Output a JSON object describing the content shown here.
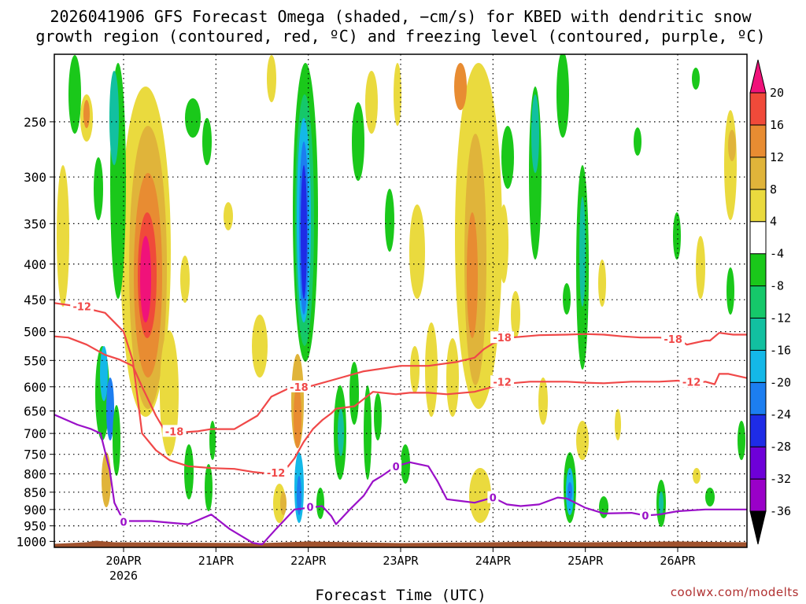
{
  "chart_data": {
    "type": "heatmap",
    "title_lines": [
      "2026041906 GFS Forecast Omega (shaded, −cm/s) for KBED with dendritic snow",
      "growth region (contoured, red, ºC) and freezing level (contoured, purple, ºC)"
    ],
    "xlabel": "Forecast Time (UTC)",
    "credit": "coolwx.com/modelts",
    "x_range_days": [
      19.25,
      26.75
    ],
    "y_range_hpa": [
      200,
      1020
    ],
    "y_ticks": [
      250,
      300,
      350,
      400,
      450,
      500,
      550,
      600,
      650,
      700,
      750,
      800,
      850,
      900,
      950,
      1000
    ],
    "x_ticks": [
      {
        "day": 20,
        "label": "20APR"
      },
      {
        "day": 21,
        "label": "21APR"
      },
      {
        "day": 22,
        "label": "22APR"
      },
      {
        "day": 23,
        "label": "23APR"
      },
      {
        "day": 24,
        "label": "24APR"
      },
      {
        "day": 25,
        "label": "25APR"
      },
      {
        "day": 26,
        "label": "26APR"
      }
    ],
    "x_sub_label": "2026",
    "colorbar": {
      "levels": [
        -36,
        -32,
        -28,
        -24,
        -20,
        -16,
        -12,
        -8,
        -4,
        4,
        8,
        12,
        16,
        20
      ],
      "colors": [
        "#999999",
        "#9a00c8",
        "#6e00d8",
        "#1e2ce6",
        "#1c7ef0",
        "#14b8e8",
        "#12c0a0",
        "#15c86a",
        "#1ac81a",
        "#ffffff",
        "#eada3e",
        "#e0b43a",
        "#e88c32",
        "#f04a3a",
        "#f0127a"
      ],
      "arrow_top": "#f0127a",
      "arrow_bottom": "#000000"
    },
    "ground_color": "#a0522d",
    "series": [
      {
        "name": "-18C isotherm (upper)",
        "color": "#f04848",
        "label": "-18",
        "points": [
          [
            19.25,
            508
          ],
          [
            19.4,
            510
          ],
          [
            19.6,
            522
          ],
          [
            19.8,
            540
          ],
          [
            19.95,
            548
          ],
          [
            20.1,
            560
          ],
          [
            20.2,
            600
          ],
          [
            20.35,
            660
          ],
          [
            20.45,
            695
          ],
          [
            20.6,
            698
          ],
          [
            20.8,
            695
          ],
          [
            20.95,
            690
          ],
          [
            21.2,
            690
          ],
          [
            21.45,
            660
          ],
          [
            21.6,
            620
          ],
          [
            21.8,
            602
          ],
          [
            22.0,
            600
          ],
          [
            22.3,
            585
          ],
          [
            22.6,
            570
          ],
          [
            23.0,
            560
          ],
          [
            23.3,
            560
          ],
          [
            23.6,
            553
          ],
          [
            23.8,
            545
          ],
          [
            23.9,
            530
          ],
          [
            24.0,
            520
          ],
          [
            24.2,
            510
          ],
          [
            24.5,
            506
          ],
          [
            24.8,
            505
          ],
          [
            25.0,
            504
          ],
          [
            25.2,
            505
          ],
          [
            25.4,
            508
          ],
          [
            25.6,
            510
          ],
          [
            25.8,
            510
          ],
          [
            26.0,
            512
          ],
          [
            26.1,
            522
          ],
          [
            26.3,
            515
          ],
          [
            26.35,
            515
          ],
          [
            26.45,
            502
          ],
          [
            26.6,
            505
          ],
          [
            26.75,
            505
          ]
        ],
        "label_positions": [
          [
            20.55,
            695
          ],
          [
            21.9,
            600
          ],
          [
            24.1,
            510
          ],
          [
            25.95,
            512
          ]
        ]
      },
      {
        "name": "-12C isotherm (lower)",
        "color": "#f04848",
        "label": "-12",
        "points": [
          [
            19.25,
            455
          ],
          [
            19.5,
            460
          ],
          [
            19.8,
            470
          ],
          [
            20.0,
            500
          ],
          [
            20.1,
            550
          ],
          [
            20.15,
            620
          ],
          [
            20.2,
            700
          ],
          [
            20.35,
            740
          ],
          [
            20.5,
            765
          ],
          [
            20.7,
            780
          ],
          [
            20.95,
            785
          ],
          [
            21.2,
            787
          ],
          [
            21.4,
            795
          ],
          [
            21.6,
            800
          ],
          [
            21.75,
            790
          ],
          [
            21.85,
            760
          ],
          [
            21.95,
            720
          ],
          [
            22.05,
            690
          ],
          [
            22.15,
            670
          ],
          [
            22.25,
            655
          ],
          [
            22.3,
            645
          ],
          [
            22.5,
            640
          ],
          [
            22.7,
            610
          ],
          [
            22.95,
            615
          ],
          [
            23.1,
            612
          ],
          [
            23.3,
            612
          ],
          [
            23.5,
            615
          ],
          [
            23.8,
            610
          ],
          [
            24.0,
            600
          ],
          [
            24.2,
            593
          ],
          [
            24.4,
            590
          ],
          [
            24.6,
            590
          ],
          [
            24.8,
            590
          ],
          [
            25.0,
            592
          ],
          [
            25.2,
            593
          ],
          [
            25.5,
            590
          ],
          [
            25.8,
            590
          ],
          [
            26.0,
            588
          ],
          [
            26.2,
            593
          ],
          [
            26.3,
            590
          ],
          [
            26.4,
            595
          ],
          [
            26.45,
            575
          ],
          [
            26.55,
            575
          ],
          [
            26.75,
            583
          ]
        ],
        "label_positions": [
          [
            19.55,
            460
          ],
          [
            21.65,
            797
          ],
          [
            24.1,
            590
          ],
          [
            26.15,
            590
          ]
        ]
      },
      {
        "name": "0C freezing level",
        "color": "#9a10c8",
        "label": "0",
        "points": [
          [
            19.25,
            658
          ],
          [
            19.5,
            680
          ],
          [
            19.65,
            690
          ],
          [
            19.75,
            700
          ],
          [
            19.85,
            790
          ],
          [
            19.9,
            880
          ],
          [
            20.0,
            935
          ],
          [
            20.3,
            935
          ],
          [
            20.5,
            940
          ],
          [
            20.7,
            945
          ],
          [
            20.95,
            915
          ],
          [
            21.15,
            960
          ],
          [
            21.4,
            1005
          ],
          [
            21.5,
            1010
          ],
          [
            21.65,
            960
          ],
          [
            21.85,
            900
          ],
          [
            22.0,
            895
          ],
          [
            22.15,
            890
          ],
          [
            22.25,
            920
          ],
          [
            22.3,
            945
          ],
          [
            22.45,
            900
          ],
          [
            22.6,
            860
          ],
          [
            22.7,
            820
          ],
          [
            22.8,
            805
          ],
          [
            22.95,
            780
          ],
          [
            23.1,
            770
          ],
          [
            23.3,
            780
          ],
          [
            23.4,
            820
          ],
          [
            23.5,
            870
          ],
          [
            23.65,
            875
          ],
          [
            23.8,
            880
          ],
          [
            24.0,
            865
          ],
          [
            24.15,
            885
          ],
          [
            24.3,
            890
          ],
          [
            24.5,
            885
          ],
          [
            24.7,
            865
          ],
          [
            24.8,
            868
          ],
          [
            25.0,
            895
          ],
          [
            25.2,
            912
          ],
          [
            25.5,
            910
          ],
          [
            25.65,
            918
          ],
          [
            25.8,
            915
          ],
          [
            26.0,
            905
          ],
          [
            26.3,
            900
          ],
          [
            26.5,
            900
          ],
          [
            26.75,
            900
          ]
        ],
        "label_positions": [
          [
            20.0,
            937
          ],
          [
            22.02,
            892
          ],
          [
            22.95,
            780
          ],
          [
            24.0,
            865
          ],
          [
            25.65,
            918
          ]
        ]
      }
    ]
  }
}
